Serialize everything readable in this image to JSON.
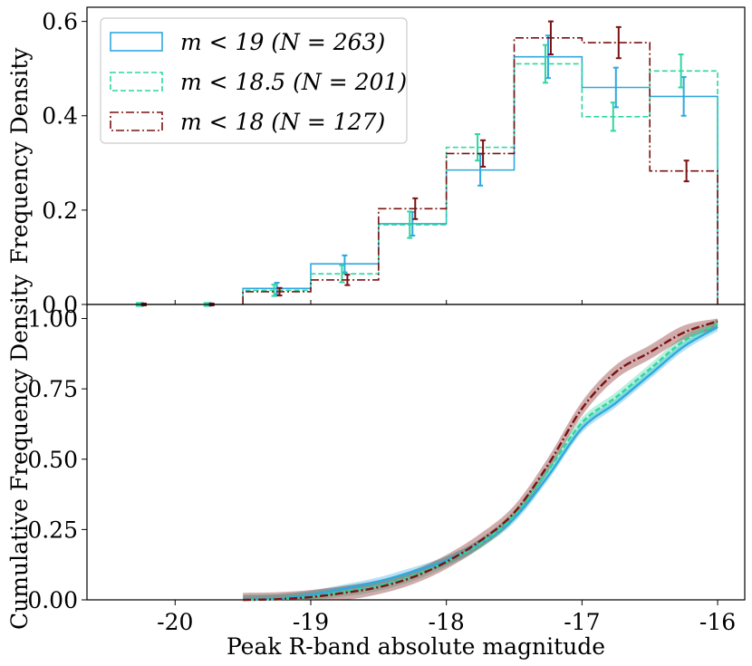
{
  "chart_data": [
    {
      "panel": "top",
      "type": "histogram",
      "ylabel": "Frequency Density",
      "ylim": [
        0,
        0.63
      ],
      "yticks": [
        0.0,
        0.2,
        0.4,
        0.6
      ],
      "ytick_labels": [
        "0.0",
        "0.2",
        "0.4",
        "0.6"
      ],
      "xlim": [
        -20.65,
        -15.8
      ],
      "bin_edges": [
        -20.5,
        -20.0,
        -19.5,
        -19.0,
        -18.5,
        -18.0,
        -17.5,
        -17.0,
        -16.5,
        -16.0
      ],
      "legend_position": "top-left",
      "series": [
        {
          "name": "m < 19 (N = 263)",
          "legend": "m < 19 (N = 263)",
          "color": "#2ea8e0",
          "linestyle": "solid",
          "values": [
            0.0,
            0.0,
            0.034,
            0.086,
            0.171,
            0.285,
            0.525,
            0.46,
            0.441
          ],
          "errors": [
            0.003,
            0.003,
            0.012,
            0.018,
            0.025,
            0.033,
            0.045,
            0.042,
            0.041
          ]
        },
        {
          "name": "m < 18.5 (N = 201)",
          "legend": "m < 18.5 (N = 201)",
          "color": "#2ed6a0",
          "linestyle": "dashed",
          "values": [
            0.0,
            0.0,
            0.03,
            0.065,
            0.169,
            0.333,
            0.51,
            0.398,
            0.495
          ],
          "errors": [
            0.003,
            0.003,
            0.012,
            0.018,
            0.028,
            0.028,
            0.04,
            0.03,
            0.035
          ]
        },
        {
          "name": "m < 18 (N = 127)",
          "legend": "m < 18 (N = 127)",
          "color": "#7a1212",
          "linestyle": "dashdot",
          "values": [
            0.0,
            0.0,
            0.027,
            0.052,
            0.203,
            0.32,
            0.565,
            0.555,
            0.283
          ],
          "errors": [
            0.002,
            0.002,
            0.008,
            0.011,
            0.022,
            0.028,
            0.035,
            0.033,
            0.022
          ]
        }
      ]
    },
    {
      "panel": "bottom",
      "type": "line",
      "ylabel": "Cumulative Frequency Density",
      "xlabel": "Peak R-band absolute magnitude",
      "ylim": [
        0,
        1.05
      ],
      "yticks": [
        0.0,
        0.25,
        0.5,
        0.75,
        1.0
      ],
      "ytick_labels": [
        "0.00",
        "0.25",
        "0.50",
        "0.75",
        "1.00"
      ],
      "xlim": [
        -20.65,
        -15.8
      ],
      "xticks": [
        -20,
        -19,
        -18,
        -17,
        -16
      ],
      "xtick_labels": [
        "-20",
        "-19",
        "-18",
        "-17",
        "-16"
      ],
      "x": [
        -19.5,
        -19.25,
        -19.0,
        -18.75,
        -18.5,
        -18.25,
        -18.0,
        -17.75,
        -17.5,
        -17.25,
        -17.0,
        -16.75,
        -16.5,
        -16.25,
        -16.0
      ],
      "series": [
        {
          "name": "m < 19 (N = 263)",
          "color": "#2ea8e0",
          "linestyle": "solid",
          "values": [
            0.0,
            0.004,
            0.018,
            0.04,
            0.065,
            0.1,
            0.14,
            0.2,
            0.29,
            0.44,
            0.61,
            0.7,
            0.8,
            0.9,
            0.97
          ],
          "band": 0.015
        },
        {
          "name": "m < 18.5 (N = 201)",
          "color": "#2ed6a0",
          "linestyle": "dashed",
          "values": [
            0.0,
            0.002,
            0.012,
            0.03,
            0.05,
            0.085,
            0.135,
            0.2,
            0.3,
            0.46,
            0.63,
            0.72,
            0.82,
            0.92,
            0.98
          ],
          "band": 0.018
        },
        {
          "name": "m < 18 (N = 127)",
          "color": "#7a1212",
          "linestyle": "dashdot",
          "values": [
            0.0,
            0.002,
            0.01,
            0.025,
            0.045,
            0.08,
            0.135,
            0.21,
            0.31,
            0.48,
            0.68,
            0.81,
            0.88,
            0.95,
            0.99
          ],
          "band": 0.025
        }
      ]
    }
  ]
}
